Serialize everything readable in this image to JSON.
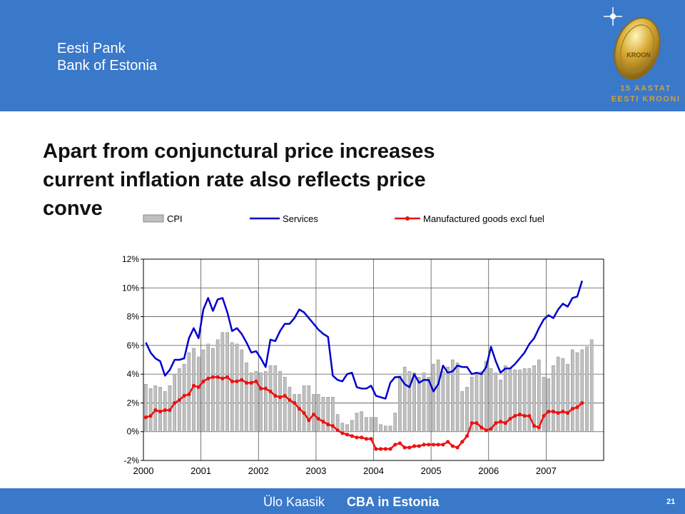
{
  "header": {
    "line1": "Eesti Pank",
    "line2": "Bank of Estonia",
    "logo_line1": "15 AASTAT",
    "logo_line2": "EESTI KROONI",
    "coin_text": "KROON",
    "accent_color": "#3a78c9"
  },
  "slide": {
    "title_line1": "Apart from conjunctural price increases",
    "title_line2": "current inflation rate also reflects price",
    "title_line3": "conve"
  },
  "footer": {
    "author": "Ülo Kaasik",
    "course": "CBA in Estonia",
    "page": "21"
  },
  "chart_data": {
    "type": "bar+line",
    "y_ticks": [
      "12%",
      "10%",
      "8%",
      "6%",
      "4%",
      "2%",
      "0%",
      "-2%"
    ],
    "ylim": [
      -2,
      12
    ],
    "x_ticks": [
      "2000",
      "2001",
      "2002",
      "2003",
      "2004",
      "2005",
      "2006",
      "2007"
    ],
    "x_start": "2000-01",
    "grid": true,
    "legend_position": "top",
    "legend": [
      "CPI",
      "Services",
      "Manufactured goods excl fuel"
    ],
    "series": [
      {
        "name": "CPI",
        "type": "bar",
        "color": "#c0c0c0",
        "values": [
          3.3,
          3.0,
          3.2,
          3.1,
          2.8,
          3.2,
          4.0,
          4.4,
          4.7,
          5.5,
          5.8,
          5.2,
          5.7,
          6.1,
          5.8,
          6.4,
          6.9,
          6.9,
          6.2,
          6.1,
          5.7,
          4.8,
          4.1,
          4.2,
          4.1,
          4.2,
          4.6,
          4.6,
          4.2,
          3.8,
          3.1,
          2.6,
          2.6,
          3.2,
          3.2,
          2.6,
          2.6,
          2.4,
          2.4,
          2.4,
          1.2,
          0.6,
          0.5,
          0.8,
          1.3,
          1.4,
          1.0,
          1.0,
          1.0,
          0.5,
          0.4,
          0.4,
          1.3,
          3.9,
          4.5,
          4.2,
          4.1,
          3.8,
          4.1,
          3.8,
          4.7,
          5.0,
          4.2,
          4.5,
          5.0,
          4.8,
          2.8,
          3.1,
          3.8,
          4.0,
          4.2,
          4.9,
          4.4,
          4.1,
          3.6,
          4.6,
          4.4,
          4.3,
          4.3,
          4.4,
          4.4,
          4.6,
          5.0,
          3.8,
          3.7,
          4.6,
          5.2,
          5.1,
          4.7,
          5.7,
          5.5,
          5.7,
          5.9,
          6.4
        ]
      },
      {
        "name": "Services",
        "type": "line",
        "color": "#0000cc",
        "values": [
          6.2,
          5.5,
          5.1,
          4.9,
          3.9,
          4.3,
          5.0,
          5.0,
          5.1,
          6.5,
          7.2,
          6.5,
          8.5,
          9.3,
          8.4,
          9.2,
          9.3,
          8.3,
          7.0,
          7.2,
          6.8,
          6.2,
          5.5,
          5.6,
          5.1,
          4.5,
          6.4,
          6.3,
          7.0,
          7.5,
          7.5,
          7.9,
          8.5,
          8.3,
          7.9,
          7.5,
          7.1,
          6.8,
          6.6,
          3.9,
          3.6,
          3.5,
          4.0,
          4.1,
          3.1,
          3.0,
          3.0,
          3.2,
          2.5,
          2.4,
          2.3,
          3.4,
          3.8,
          3.8,
          3.3,
          3.1,
          4.0,
          3.4,
          3.6,
          3.6,
          2.8,
          3.3,
          4.6,
          4.1,
          4.2,
          4.6,
          4.5,
          4.5,
          4.0,
          4.1,
          4.0,
          4.5,
          5.9,
          4.9,
          4.1,
          4.4,
          4.4,
          4.7,
          5.1,
          5.5,
          6.1,
          6.5,
          7.2,
          7.8,
          8.1,
          7.9,
          8.5,
          8.9,
          8.7,
          9.3,
          9.4,
          10.5
        ]
      },
      {
        "name": "Manufactured goods excl fuel",
        "type": "line",
        "color": "#ee1111",
        "values": [
          1.0,
          1.1,
          1.5,
          1.4,
          1.5,
          1.5,
          2.0,
          2.2,
          2.5,
          2.6,
          3.2,
          3.1,
          3.5,
          3.7,
          3.8,
          3.8,
          3.7,
          3.8,
          3.5,
          3.5,
          3.6,
          3.4,
          3.4,
          3.5,
          3.0,
          3.0,
          2.8,
          2.5,
          2.4,
          2.5,
          2.2,
          2.0,
          1.6,
          1.3,
          0.8,
          1.2,
          0.9,
          0.7,
          0.5,
          0.4,
          0.1,
          -0.1,
          -0.2,
          -0.3,
          -0.4,
          -0.4,
          -0.5,
          -0.5,
          -1.2,
          -1.2,
          -1.2,
          -1.2,
          -0.9,
          -0.8,
          -1.1,
          -1.1,
          -1.0,
          -1.0,
          -0.9,
          -0.9,
          -0.9,
          -0.9,
          -0.9,
          -0.7,
          -1.0,
          -1.1,
          -0.7,
          -0.3,
          0.6,
          0.6,
          0.3,
          0.1,
          0.2,
          0.6,
          0.7,
          0.6,
          0.9,
          1.1,
          1.2,
          1.1,
          1.1,
          0.4,
          0.3,
          1.1,
          1.4,
          1.4,
          1.3,
          1.4,
          1.3,
          1.6,
          1.7,
          2.0
        ]
      }
    ]
  }
}
